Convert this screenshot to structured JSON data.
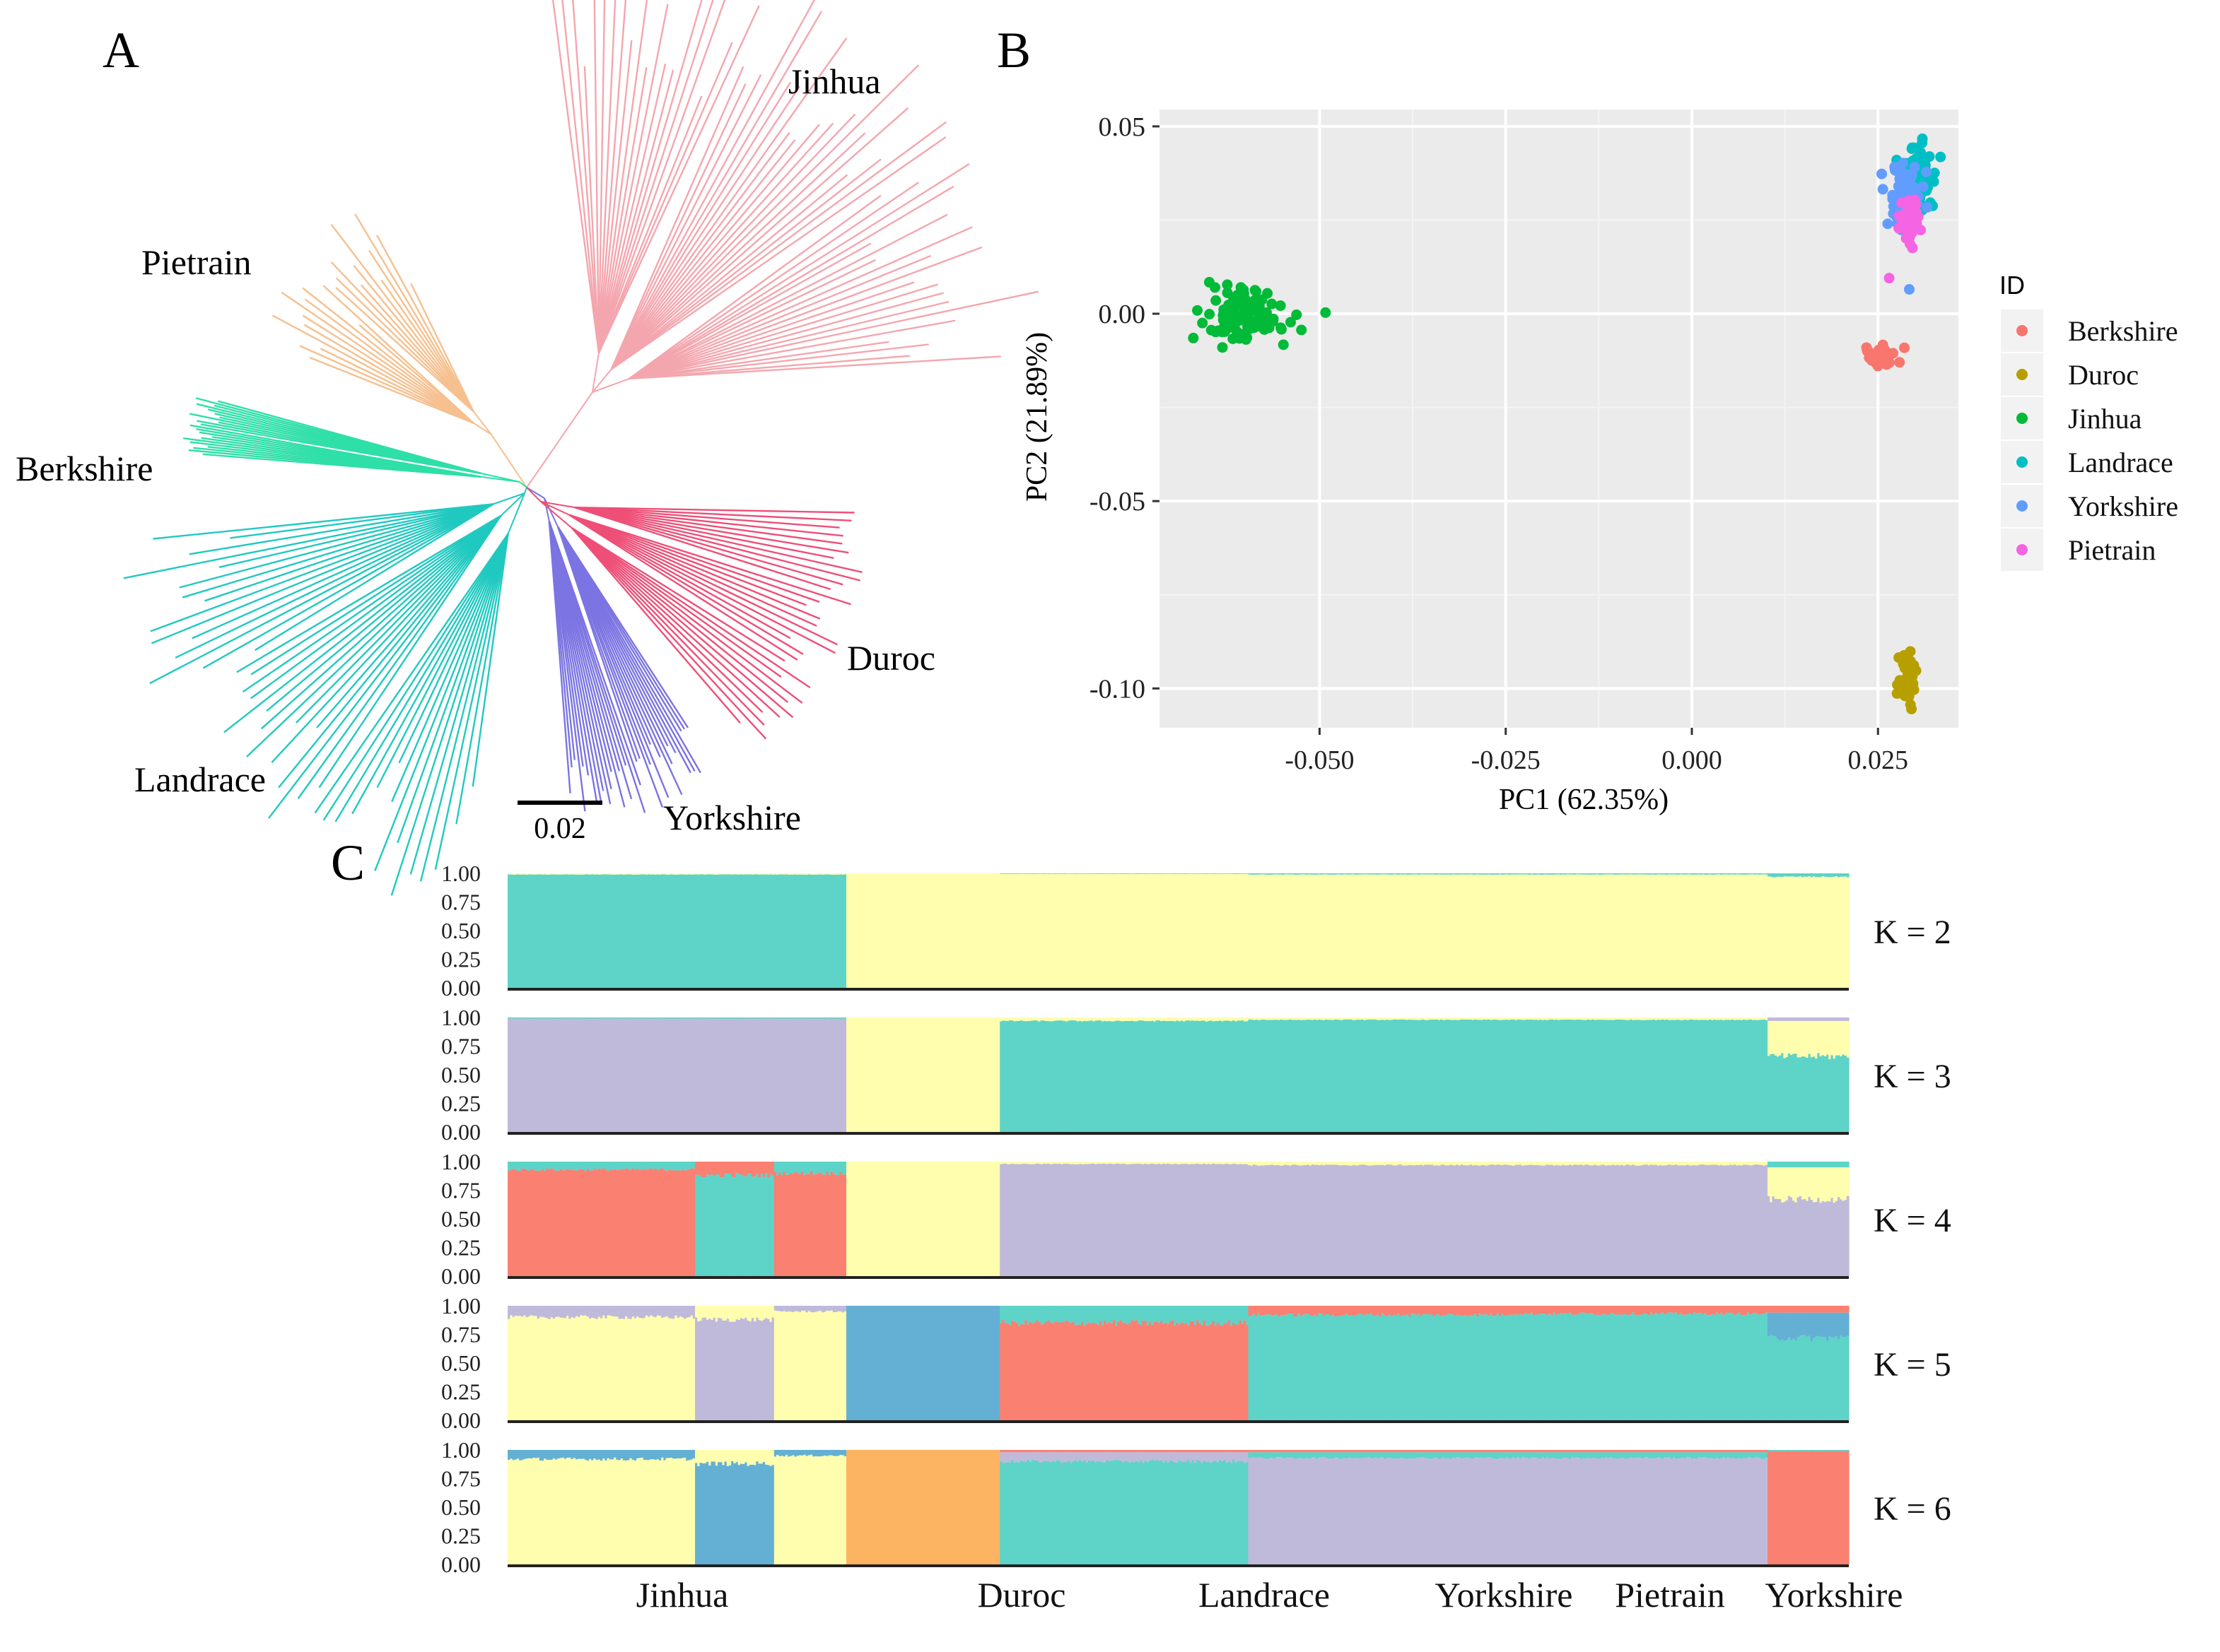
{
  "panel_labels": {
    "a": "A",
    "b": "B",
    "c": "C"
  },
  "tree": {
    "clades": [
      {
        "name": "Jinhua",
        "color": "#F4A6AE",
        "count": 60
      },
      {
        "name": "Pietrain",
        "color": "#F6C08F",
        "count": 22
      },
      {
        "name": "Berkshire",
        "color": "#2FDFA8",
        "count": 22
      },
      {
        "name": "Landrace",
        "color": "#20C9C0",
        "count": 45
      },
      {
        "name": "Yorkshire",
        "color": "#7B74E2",
        "count": 35
      },
      {
        "name": "Duroc",
        "color": "#EE4F77",
        "count": 32
      }
    ],
    "scale_label": "0.02"
  },
  "pca": {
    "xlabel": "PC1 (62.35%)",
    "ylabel": "PC2 (21.89%)",
    "x_ticks": [
      "-0.050",
      "-0.025",
      "0.000",
      "0.025"
    ],
    "x_tick_values": [
      -0.05,
      -0.025,
      0.0,
      0.025
    ],
    "y_ticks": [
      "0.05",
      "0.00",
      "-0.05",
      "-0.10"
    ],
    "y_tick_values": [
      0.05,
      0.0,
      -0.05,
      -0.1
    ],
    "xlim": [
      -0.0715,
      0.0358
    ],
    "ylim": [
      -0.1105,
      0.0545
    ],
    "legend_title": "ID",
    "groups": [
      {
        "name": "Berkshire",
        "color": "#F8766D",
        "cx": 0.0255,
        "cy": -0.0115,
        "sx": 0.0008,
        "sy": 0.0012,
        "n": 40
      },
      {
        "name": "Duroc",
        "color": "#B79F00",
        "cx": 0.029,
        "cy": -0.097,
        "sx": 0.0006,
        "sy": 0.0035,
        "n": 40
      },
      {
        "name": "Jinhua",
        "color": "#00BA38",
        "cx": -0.0605,
        "cy": -0.0005,
        "sx": 0.0028,
        "sy": 0.0035,
        "n": 110
      },
      {
        "name": "Landrace",
        "color": "#00BFC4",
        "cx": 0.0305,
        "cy": 0.036,
        "sx": 0.0009,
        "sy": 0.004,
        "n": 90
      },
      {
        "name": "Yorkshire",
        "color": "#619CFF",
        "cx": 0.0285,
        "cy": 0.031,
        "sx": 0.001,
        "sy": 0.0045,
        "n": 80
      },
      {
        "name": "Pietrain",
        "color": "#F564E3",
        "cx": 0.0293,
        "cy": 0.025,
        "sx": 0.0006,
        "sy": 0.0035,
        "n": 50
      }
    ],
    "extra_points": [
      {
        "x": -0.0492,
        "y": 0.0003,
        "group": "Jinhua"
      },
      {
        "x": 0.0265,
        "y": 0.0095,
        "group": "Pietrain"
      },
      {
        "x": 0.0292,
        "y": 0.0065,
        "group": "Yorkshire"
      }
    ]
  },
  "admixture": {
    "y_ticks": [
      "1.00",
      "0.75",
      "0.50",
      "0.25",
      "0.00"
    ],
    "panels": [
      {
        "label": "K = 2"
      },
      {
        "label": "K = 3"
      },
      {
        "label": "K = 4"
      },
      {
        "label": "K = 5"
      },
      {
        "label": "K = 6"
      }
    ],
    "group_labels": [
      "Jinhua",
      "Duroc",
      "Landrace",
      "Yorkshire",
      "Pietrain",
      "Yorkshire"
    ],
    "palette": {
      "teal": "#5ED3C8",
      "yellow": "#FEFEAE",
      "lavender": "#BFBADA",
      "salmon": "#FA8072",
      "blue": "#64B0D4",
      "orange": "#FDB462"
    }
  },
  "chart_data": [
    {
      "type": "tree",
      "title": "A",
      "clades": [
        "Jinhua",
        "Pietrain",
        "Berkshire",
        "Landrace",
        "Yorkshire",
        "Duroc"
      ],
      "scale_bar": 0.02
    },
    {
      "type": "scatter",
      "title": "B",
      "xlabel": "PC1 (62.35%)",
      "ylabel": "PC2 (21.89%)",
      "xlim": [
        -0.0715,
        0.0358
      ],
      "ylim": [
        -0.1105,
        0.0545
      ],
      "series": [
        {
          "name": "Berkshire",
          "x": 0.0255,
          "y": -0.0115
        },
        {
          "name": "Duroc",
          "x": 0.029,
          "y": -0.097
        },
        {
          "name": "Jinhua",
          "x": -0.0605,
          "y": -0.0005
        },
        {
          "name": "Landrace",
          "x": 0.0305,
          "y": 0.036
        },
        {
          "name": "Yorkshire",
          "x": 0.0285,
          "y": 0.031
        },
        {
          "name": "Pietrain",
          "x": 0.0293,
          "y": 0.025
        }
      ]
    },
    {
      "type": "bar",
      "title": "C",
      "stacked": true,
      "ylim": [
        0,
        1
      ],
      "groups": [
        {
          "name": "Jinhua",
          "count": 150
        },
        {
          "name": "Duroc",
          "count": 68
        },
        {
          "name": "Landrace",
          "count": 110
        },
        {
          "name": "Yorkshire",
          "count": 115
        },
        {
          "name": "Pietrain",
          "count": 115
        },
        {
          "name": "Yorkshire",
          "count": 36
        }
      ],
      "panels": [
        {
          "k": 2,
          "segments": [
            {
              "group": "Jinhua",
              "teal": 0.99,
              "yellow": 0.01
            },
            {
              "group": "Duroc",
              "yellow": 1.0
            },
            {
              "group": "Landrace",
              "yellow": 0.995,
              "teal": 0.005
            },
            {
              "group": "Yorkshire",
              "yellow": 0.99,
              "teal": 0.01
            },
            {
              "group": "Pietrain",
              "yellow": 0.99,
              "teal": 0.01
            },
            {
              "group": "Yorkshire",
              "yellow": 0.97,
              "teal": 0.03
            }
          ]
        },
        {
          "k": 3,
          "segments": [
            {
              "group": "Jinhua",
              "lavender": 0.99,
              "teal": 0.01
            },
            {
              "group": "Duroc",
              "yellow": 1.0
            },
            {
              "group": "Landrace",
              "teal": 0.97,
              "yellow": 0.03
            },
            {
              "group": "Yorkshire",
              "teal": 0.98,
              "yellow": 0.02
            },
            {
              "group": "Pietrain",
              "teal": 0.98,
              "yellow": 0.02
            },
            {
              "group": "Yorkshire",
              "teal": 0.66,
              "yellow": 0.31,
              "lavender": 0.03
            }
          ]
        },
        {
          "k": 4,
          "segments": [
            {
              "group": "Jinhua (a)",
              "salmon": 0.93,
              "teal": 0.07
            },
            {
              "group": "Jinhua (b)",
              "teal": 0.88,
              "salmon": 0.12
            },
            {
              "group": "Jinhua (c)",
              "salmon": 0.9,
              "teal": 0.1
            },
            {
              "group": "Duroc",
              "yellow": 1.0
            },
            {
              "group": "Landrace",
              "lavender": 0.98,
              "yellow": 0.02
            },
            {
              "group": "Yorkshire",
              "lavender": 0.97,
              "yellow": 0.03
            },
            {
              "group": "Pietrain",
              "lavender": 0.97,
              "yellow": 0.03
            },
            {
              "group": "Yorkshire",
              "lavender": 0.67,
              "yellow": 0.28,
              "teal": 0.05
            }
          ]
        },
        {
          "k": 5,
          "segments": [
            {
              "group": "Jinhua (a)",
              "yellow": 0.9,
              "lavender": 0.1
            },
            {
              "group": "Jinhua (b)",
              "lavender": 0.88,
              "yellow": 0.12
            },
            {
              "group": "Jinhua (c)",
              "yellow": 0.95,
              "lavender": 0.05
            },
            {
              "group": "Duroc",
              "blue": 1.0
            },
            {
              "group": "Landrace",
              "salmon": 0.85,
              "teal": 0.15
            },
            {
              "group": "Yorkshire",
              "teal": 0.92,
              "salmon": 0.08
            },
            {
              "group": "Pietrain",
              "teal": 0.93,
              "salmon": 0.07
            },
            {
              "group": "Yorkshire",
              "teal": 0.72,
              "blue": 0.22,
              "salmon": 0.06
            }
          ]
        },
        {
          "k": 6,
          "segments": [
            {
              "group": "Jinhua (a)",
              "yellow": 0.92,
              "blue": 0.08
            },
            {
              "group": "Jinhua (b)",
              "blue": 0.88,
              "yellow": 0.12
            },
            {
              "group": "Jinhua (c)",
              "yellow": 0.95,
              "blue": 0.05
            },
            {
              "group": "Duroc",
              "orange": 1.0
            },
            {
              "group": "Landrace",
              "teal": 0.9,
              "lavender": 0.08,
              "salmon": 0.02
            },
            {
              "group": "Yorkshire",
              "lavender": 0.93,
              "teal": 0.05,
              "salmon": 0.02
            },
            {
              "group": "Pietrain",
              "lavender": 0.93,
              "teal": 0.05,
              "salmon": 0.02
            },
            {
              "group": "Yorkshire",
              "salmon": 0.99,
              "teal": 0.01
            }
          ]
        }
      ]
    }
  ]
}
